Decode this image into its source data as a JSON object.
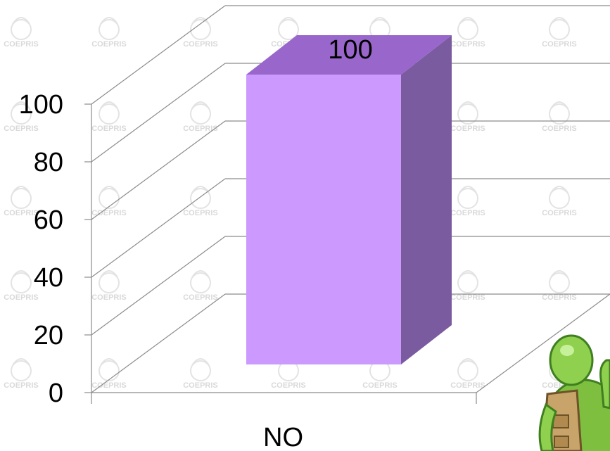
{
  "chart_data": {
    "type": "bar",
    "categories": [
      "NO"
    ],
    "values": [
      100
    ],
    "data_labels": [
      "100"
    ],
    "ylim": [
      0,
      100
    ],
    "yticks": [
      "0",
      "20",
      "40",
      "60",
      "80",
      "100"
    ],
    "grid": true,
    "title": "",
    "xlabel": "",
    "ylabel": "",
    "bar_color": "#cc99ff",
    "bar_top_color": "#9966cc",
    "bar_side_color": "#7a5ba0"
  },
  "watermark": {
    "text": "COEPRIS"
  }
}
